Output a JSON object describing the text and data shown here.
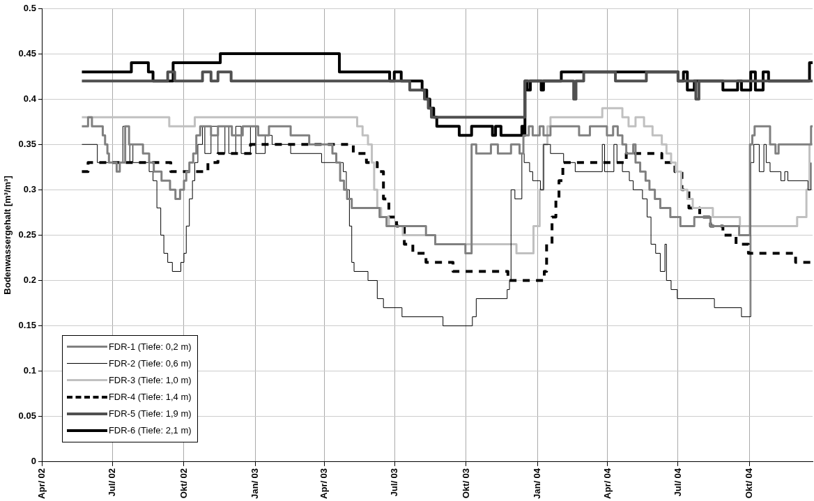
{
  "chart_data": {
    "type": "step",
    "ylabel": "Bodenwassergehalt [m³/m³]",
    "xlim": [
      "2002-04-01",
      "2004-12-22"
    ],
    "xticks": [
      {
        "value": "2002-04-01",
        "label": "Apr/ 02"
      },
      {
        "value": "2002-07-01",
        "label": "Jul/ 02"
      },
      {
        "value": "2002-10-01",
        "label": "Okt/ 02"
      },
      {
        "value": "2003-01-01",
        "label": "Jan/ 03"
      },
      {
        "value": "2003-04-01",
        "label": "Apr/ 03"
      },
      {
        "value": "2003-07-01",
        "label": "Jul/ 03"
      },
      {
        "value": "2003-10-01",
        "label": "Okt/ 03"
      },
      {
        "value": "2004-01-01",
        "label": "Jan/ 04"
      },
      {
        "value": "2004-04-01",
        "label": "Apr/ 04"
      },
      {
        "value": "2004-07-01",
        "label": "Jul/ 04"
      },
      {
        "value": "2004-10-01",
        "label": "Okt/ 04"
      }
    ],
    "ylim": [
      0,
      0.5
    ],
    "yticks": [
      0,
      0.05,
      0.1,
      0.15,
      0.2,
      0.25,
      0.3,
      0.35,
      0.4,
      0.45,
      0.5
    ],
    "grid": true,
    "legend": "bottom left",
    "marker": "none",
    "series": [
      {
        "name": "FDR-1 (Tiefe: 0,2 m)",
        "color": "#808080",
        "line_style": "solid",
        "x": [
          "2002-05-22",
          "2002-05-30",
          "2002-06-04",
          "2002-06-18",
          "2002-06-21",
          "2002-06-24",
          "2002-06-26",
          "2002-07-06",
          "2002-07-10",
          "2002-07-17",
          "2002-07-22",
          "2002-08-09",
          "2002-08-17",
          "2002-08-23",
          "2002-09-02",
          "2002-09-13",
          "2002-09-20",
          "2002-09-26",
          "2002-10-01",
          "2002-10-04",
          "2002-10-08",
          "2002-10-13",
          "2002-10-17",
          "2002-10-22",
          "2002-11-05",
          "2002-11-14",
          "2002-12-02",
          "2002-12-16",
          "2003-01-05",
          "2003-01-19",
          "2003-02-16",
          "2003-03-12",
          "2003-04-11",
          "2003-04-16",
          "2003-04-21",
          "2003-04-26",
          "2003-04-30",
          "2003-05-06",
          "2003-06-11",
          "2003-06-20",
          "2003-08-10",
          "2003-08-22",
          "2003-09-30",
          "2003-10-08",
          "2003-10-14",
          "2003-11-02",
          "2003-11-11",
          "2003-11-28",
          "2003-12-09",
          "2003-12-14",
          "2003-12-21",
          "2003-12-26",
          "2004-01-04",
          "2004-01-09",
          "2004-01-18",
          "2004-02-24",
          "2004-03-09",
          "2004-03-31",
          "2004-04-08",
          "2004-04-14",
          "2004-04-20",
          "2004-04-25",
          "2004-05-04",
          "2004-05-07",
          "2004-05-13",
          "2004-05-20",
          "2004-05-25",
          "2004-06-01",
          "2004-06-08",
          "2004-06-21",
          "2004-07-04",
          "2004-07-22",
          "2004-08-12",
          "2004-09-18",
          "2004-10-02",
          "2004-10-05",
          "2004-10-08",
          "2004-10-28",
          "2004-11-04",
          "2004-11-08",
          "2004-12-20",
          "2004-12-22"
        ],
        "values": [
          0.37,
          0.38,
          0.37,
          0.36,
          0.35,
          0.34,
          0.33,
          0.32,
          0.33,
          0.37,
          0.35,
          0.34,
          0.33,
          0.32,
          0.31,
          0.3,
          0.29,
          0.3,
          0.31,
          0.32,
          0.33,
          0.34,
          0.36,
          0.37,
          0.36,
          0.37,
          0.36,
          0.37,
          0.36,
          0.37,
          0.36,
          0.35,
          0.34,
          0.33,
          0.31,
          0.3,
          0.29,
          0.28,
          0.27,
          0.26,
          0.25,
          0.24,
          0.23,
          0.35,
          0.34,
          0.35,
          0.34,
          0.35,
          0.34,
          0.36,
          0.37,
          0.36,
          0.37,
          0.36,
          0.37,
          0.36,
          0.37,
          0.36,
          0.37,
          0.36,
          0.35,
          0.34,
          0.35,
          0.33,
          0.32,
          0.31,
          0.3,
          0.29,
          0.28,
          0.27,
          0.26,
          0.27,
          0.26,
          0.25,
          0.35,
          0.36,
          0.37,
          0.35,
          0.34,
          0.35,
          0.37,
          0.37
        ]
      },
      {
        "name": "FDR-2 (Tiefe: 0,6 m)",
        "color": "#000000",
        "line_style": "solid",
        "x": [
          "2002-05-22",
          "2002-06-11",
          "2002-07-14",
          "2002-07-17",
          "2002-07-23",
          "2002-07-27",
          "2002-08-17",
          "2002-08-22",
          "2002-08-27",
          "2002-09-01",
          "2002-09-05",
          "2002-09-10",
          "2002-09-16",
          "2002-09-27",
          "2002-10-01",
          "2002-10-04",
          "2002-10-08",
          "2002-10-12",
          "2002-10-15",
          "2002-10-19",
          "2002-10-25",
          "2002-10-28",
          "2002-11-05",
          "2002-11-14",
          "2002-11-23",
          "2002-11-28",
          "2002-12-07",
          "2002-12-14",
          "2002-12-26",
          "2003-01-02",
          "2003-01-14",
          "2003-01-23",
          "2003-02-16",
          "2003-03-28",
          "2003-04-25",
          "2003-04-29",
          "2003-05-03",
          "2003-05-06",
          "2003-05-09",
          "2003-05-27",
          "2003-06-08",
          "2003-06-16",
          "2003-07-10",
          "2003-09-01",
          "2003-10-09",
          "2003-10-14",
          "2003-11-23",
          "2003-11-26",
          "2003-11-28",
          "2003-12-03",
          "2003-12-12",
          "2003-12-15",
          "2003-12-22",
          "2003-12-26",
          "2004-01-05",
          "2004-01-09",
          "2004-01-18",
          "2004-02-04",
          "2004-02-19",
          "2004-03-25",
          "2004-03-28",
          "2004-04-09",
          "2004-04-13",
          "2004-04-20",
          "2004-04-29",
          "2004-05-04",
          "2004-05-16",
          "2004-05-22",
          "2004-05-27",
          "2004-06-02",
          "2004-06-08",
          "2004-06-14",
          "2004-06-16",
          "2004-06-22",
          "2004-06-30",
          "2004-08-17",
          "2004-09-21",
          "2004-10-03",
          "2004-10-07",
          "2004-10-14",
          "2004-10-20",
          "2004-10-23",
          "2004-10-28",
          "2004-11-11",
          "2004-11-16",
          "2004-11-20",
          "2004-12-16",
          "2004-12-20"
        ],
        "values": [
          0.35,
          0.33,
          0.37,
          0.33,
          0.35,
          0.33,
          0.32,
          0.31,
          0.28,
          0.25,
          0.23,
          0.22,
          0.21,
          0.22,
          0.23,
          0.26,
          0.29,
          0.31,
          0.33,
          0.35,
          0.37,
          0.34,
          0.37,
          0.34,
          0.37,
          0.34,
          0.37,
          0.34,
          0.37,
          0.34,
          0.36,
          0.35,
          0.34,
          0.33,
          0.32,
          0.3,
          0.26,
          0.22,
          0.21,
          0.2,
          0.18,
          0.17,
          0.16,
          0.15,
          0.16,
          0.18,
          0.19,
          0.2,
          0.3,
          0.29,
          0.34,
          0.33,
          0.32,
          0.31,
          0.3,
          0.35,
          0.34,
          0.33,
          0.32,
          0.35,
          0.32,
          0.35,
          0.33,
          0.32,
          0.31,
          0.3,
          0.29,
          0.27,
          0.24,
          0.23,
          0.21,
          0.24,
          0.2,
          0.19,
          0.18,
          0.17,
          0.16,
          0.33,
          0.35,
          0.32,
          0.35,
          0.33,
          0.32,
          0.31,
          0.32,
          0.31,
          0.3,
          0.33
        ]
      },
      {
        "name": "FDR-3 (Tiefe: 1,0 m)",
        "color": "#c0c0c0",
        "line_style": "solid",
        "x": [
          "2002-05-22",
          "2002-09-12",
          "2002-10-15",
          "2003-05-13",
          "2003-05-20",
          "2003-05-27",
          "2003-06-01",
          "2003-06-04",
          "2003-06-08",
          "2003-06-13",
          "2003-06-23",
          "2003-07-11",
          "2003-08-22",
          "2003-12-05",
          "2003-12-27",
          "2004-01-04",
          "2004-01-09",
          "2004-01-14",
          "2004-01-18",
          "2004-03-25",
          "2004-04-20",
          "2004-04-28",
          "2004-05-07",
          "2004-05-18",
          "2004-05-29",
          "2004-06-10",
          "2004-06-16",
          "2004-06-22",
          "2004-06-28",
          "2004-07-05",
          "2004-07-13",
          "2004-07-20",
          "2004-08-15",
          "2004-09-19",
          "2004-12-02",
          "2004-12-14",
          "2004-12-18",
          "2004-12-22"
        ],
        "values": [
          0.38,
          0.37,
          0.38,
          0.37,
          0.36,
          0.35,
          0.33,
          0.3,
          0.28,
          0.27,
          0.26,
          0.25,
          0.24,
          0.23,
          0.26,
          0.3,
          0.35,
          0.37,
          0.38,
          0.39,
          0.38,
          0.37,
          0.38,
          0.37,
          0.36,
          0.35,
          0.34,
          0.33,
          0.32,
          0.3,
          0.29,
          0.28,
          0.27,
          0.26,
          0.27,
          0.3,
          0.35,
          0.35
        ]
      },
      {
        "name": "FDR-4 (Tiefe: 1,4 m)",
        "color": "#000000",
        "line_style": "dashed",
        "x": [
          "2002-05-22",
          "2002-05-30",
          "2002-09-14",
          "2002-11-01",
          "2002-11-14",
          "2002-12-26",
          "2003-05-08",
          "2003-05-25",
          "2003-06-08",
          "2003-06-16",
          "2003-06-23",
          "2003-07-03",
          "2003-07-13",
          "2003-07-24",
          "2003-08-10",
          "2003-09-14",
          "2003-11-24",
          "2004-01-10",
          "2004-01-13",
          "2004-01-20",
          "2004-01-25",
          "2004-01-29",
          "2004-02-03",
          "2004-04-25",
          "2004-06-10",
          "2004-06-27",
          "2004-07-06",
          "2004-07-15",
          "2004-07-29",
          "2004-08-12",
          "2004-08-28",
          "2004-09-14",
          "2004-09-30",
          "2004-11-30",
          "2004-12-22"
        ],
        "values": [
          0.32,
          0.33,
          0.32,
          0.33,
          0.34,
          0.35,
          0.34,
          0.33,
          0.32,
          0.29,
          0.27,
          0.26,
          0.24,
          0.23,
          0.22,
          0.21,
          0.2,
          0.21,
          0.24,
          0.27,
          0.29,
          0.31,
          0.33,
          0.34,
          0.33,
          0.32,
          0.3,
          0.28,
          0.27,
          0.26,
          0.25,
          0.24,
          0.23,
          0.22,
          0.22
        ]
      },
      {
        "name": "FDR-5 (Tiefe: 1,9 m)",
        "color": "#505050",
        "line_style": "solid",
        "x": [
          "2002-05-22",
          "2002-09-10",
          "2002-09-19",
          "2002-10-25",
          "2002-11-05",
          "2002-11-14",
          "2002-12-01",
          "2003-07-20",
          "2003-08-08",
          "2003-08-13",
          "2003-08-17",
          "2003-12-16",
          "2004-02-17",
          "2004-02-20",
          "2004-03-01",
          "2004-04-11",
          "2004-05-21",
          "2004-07-01",
          "2004-07-24",
          "2004-07-28",
          "2004-12-22"
        ],
        "values": [
          0.42,
          0.43,
          0.42,
          0.43,
          0.42,
          0.43,
          0.42,
          0.41,
          0.4,
          0.39,
          0.38,
          0.42,
          0.4,
          0.42,
          0.43,
          0.42,
          0.43,
          0.42,
          0.4,
          0.42,
          0.42
        ]
      },
      {
        "name": "FDR-6 (Tiefe: 2,1 m)",
        "color": "#000000",
        "line_style": "solid",
        "x": [
          "2002-05-22",
          "2002-07-25",
          "2002-08-16",
          "2002-08-22",
          "2002-09-17",
          "2002-11-17",
          "2003-04-20",
          "2003-06-24",
          "2003-06-30",
          "2003-07-09",
          "2003-08-05",
          "2003-08-11",
          "2003-08-15",
          "2003-08-20",
          "2003-08-24",
          "2003-09-22",
          "2003-10-08",
          "2003-11-04",
          "2003-11-08",
          "2003-11-15",
          "2003-12-12",
          "2003-12-14",
          "2003-12-16",
          "2003-12-19",
          "2003-12-23",
          "2004-01-06",
          "2004-01-09",
          "2004-02-01",
          "2004-07-01",
          "2004-07-08",
          "2004-07-13",
          "2004-07-22",
          "2004-08-28",
          "2004-09-16",
          "2004-09-21",
          "2004-10-03",
          "2004-10-09",
          "2004-10-19",
          "2004-10-26",
          "2004-12-18",
          "2004-12-22"
        ],
        "values": [
          0.43,
          0.44,
          0.43,
          0.42,
          0.44,
          0.45,
          0.43,
          0.42,
          0.43,
          0.42,
          0.41,
          0.4,
          0.39,
          0.38,
          0.37,
          0.36,
          0.37,
          0.36,
          0.37,
          0.36,
          0.37,
          0.36,
          0.42,
          0.41,
          0.42,
          0.41,
          0.42,
          0.43,
          0.42,
          0.43,
          0.41,
          0.42,
          0.41,
          0.42,
          0.41,
          0.43,
          0.41,
          0.43,
          0.42,
          0.44,
          0.44
        ]
      }
    ]
  }
}
